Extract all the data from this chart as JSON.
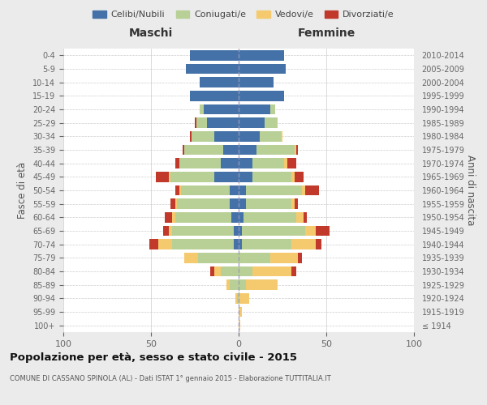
{
  "age_groups": [
    "100+",
    "95-99",
    "90-94",
    "85-89",
    "80-84",
    "75-79",
    "70-74",
    "65-69",
    "60-64",
    "55-59",
    "50-54",
    "45-49",
    "40-44",
    "35-39",
    "30-34",
    "25-29",
    "20-24",
    "15-19",
    "10-14",
    "5-9",
    "0-4"
  ],
  "birth_years": [
    "≤ 1914",
    "1915-1919",
    "1920-1924",
    "1925-1929",
    "1930-1934",
    "1935-1939",
    "1940-1944",
    "1945-1949",
    "1950-1954",
    "1955-1959",
    "1960-1964",
    "1965-1969",
    "1970-1974",
    "1975-1979",
    "1980-1984",
    "1985-1989",
    "1990-1994",
    "1995-1999",
    "2000-2004",
    "2005-2009",
    "2010-2014"
  ],
  "males": {
    "celibi": [
      0,
      0,
      0,
      0,
      0,
      0,
      3,
      3,
      4,
      5,
      5,
      14,
      10,
      9,
      14,
      18,
      20,
      28,
      22,
      30,
      28
    ],
    "coniugati": [
      0,
      0,
      1,
      5,
      10,
      23,
      35,
      35,
      32,
      30,
      28,
      25,
      24,
      22,
      13,
      6,
      2,
      0,
      0,
      0,
      0
    ],
    "vedovi": [
      0,
      0,
      1,
      2,
      4,
      8,
      8,
      2,
      2,
      1,
      1,
      1,
      0,
      0,
      0,
      0,
      0,
      0,
      0,
      0,
      0
    ],
    "divorziati": [
      0,
      0,
      0,
      0,
      2,
      0,
      5,
      3,
      4,
      3,
      2,
      7,
      2,
      1,
      1,
      1,
      0,
      0,
      0,
      0,
      0
    ]
  },
  "females": {
    "nubili": [
      0,
      0,
      0,
      0,
      0,
      0,
      2,
      2,
      3,
      4,
      4,
      8,
      8,
      10,
      12,
      15,
      18,
      26,
      20,
      27,
      26
    ],
    "coniugate": [
      0,
      0,
      0,
      4,
      8,
      18,
      28,
      36,
      30,
      26,
      32,
      22,
      18,
      22,
      12,
      7,
      3,
      0,
      0,
      0,
      0
    ],
    "vedove": [
      1,
      2,
      6,
      18,
      22,
      16,
      14,
      6,
      4,
      2,
      2,
      2,
      2,
      1,
      1,
      0,
      0,
      0,
      0,
      0,
      0
    ],
    "divorziate": [
      0,
      0,
      0,
      0,
      3,
      2,
      3,
      8,
      2,
      2,
      8,
      5,
      5,
      1,
      0,
      0,
      0,
      0,
      0,
      0,
      0
    ]
  },
  "color_celibi": "#4472a8",
  "color_coniugati": "#b8d096",
  "color_vedovi": "#f5c96e",
  "color_divorziati": "#c0392b",
  "xlim": 100,
  "title": "Popolazione per età, sesso e stato civile - 2015",
  "subtitle": "COMUNE DI CASSANO SPINOLA (AL) - Dati ISTAT 1° gennaio 2015 - Elaborazione TUTTITALIA.IT",
  "ylabel_left": "Fasce di età",
  "ylabel_right": "Anni di nascita",
  "xlabel_left": "Maschi",
  "xlabel_right": "Femmine",
  "bg_color": "#ebebeb",
  "plot_bg_color": "#ffffff"
}
